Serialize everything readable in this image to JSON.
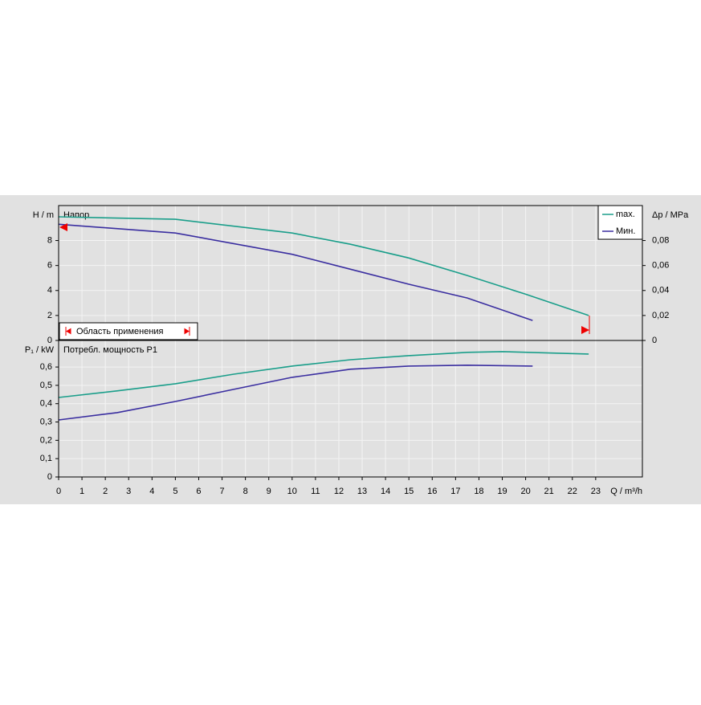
{
  "chart_data": [
    {
      "type": "line",
      "y_label": "H / m",
      "annotation": "Напор",
      "y2_label": "Δp / MPa",
      "range_label": "Область применения",
      "xlim": [
        0,
        25
      ],
      "xticks": [
        0,
        1,
        2,
        3,
        4,
        5,
        6,
        7,
        8,
        9,
        10,
        11,
        12,
        13,
        14,
        15,
        16,
        17,
        18,
        19,
        20,
        21,
        22,
        23
      ],
      "ylim": [
        0,
        10.8
      ],
      "yticks": [
        0,
        2,
        4,
        6,
        8
      ],
      "y2lim": [
        0,
        0.108
      ],
      "y2ticks": [
        0,
        {
          "value": 0.02,
          "label": "0,02"
        },
        {
          "value": 0.04,
          "label": "0,04"
        },
        {
          "value": 0.06,
          "label": "0,06"
        },
        {
          "value": 0.08,
          "label": "0,08"
        }
      ],
      "grid": true,
      "series": [
        {
          "name": "max.",
          "color": "#1a9e8a",
          "x": [
            0,
            5,
            10,
            12.5,
            15,
            17.5,
            20,
            22.7
          ],
          "values": [
            9.9,
            9.7,
            8.6,
            7.7,
            6.6,
            5.2,
            3.7,
            2.0
          ]
        },
        {
          "name": "Мин.",
          "color": "#3a2ea0",
          "x": [
            0,
            5,
            10,
            12.5,
            15,
            17.5,
            20.3
          ],
          "values": [
            9.3,
            8.6,
            6.9,
            5.7,
            4.5,
            3.4,
            1.6
          ]
        }
      ]
    },
    {
      "type": "line",
      "y_label": "P₁ / kW",
      "annotation": "Потребл. мощность P1",
      "x_label": "Q / m³/h",
      "xlim": [
        0,
        25
      ],
      "xticks": [
        0,
        1,
        2,
        3,
        4,
        5,
        6,
        7,
        8,
        9,
        10,
        11,
        12,
        13,
        14,
        15,
        16,
        17,
        18,
        19,
        20,
        21,
        22,
        23
      ],
      "ylim": [
        0,
        0.745
      ],
      "yticks": [
        0,
        {
          "value": 0.1,
          "label": "0,1"
        },
        {
          "value": 0.2,
          "label": "0,2"
        },
        {
          "value": 0.3,
          "label": "0,3"
        },
        {
          "value": 0.4,
          "label": "0,4"
        },
        {
          "value": 0.5,
          "label": "0,5"
        },
        {
          "value": 0.6,
          "label": "0,6"
        }
      ],
      "grid": true,
      "series": [
        {
          "color": "#1a9e8a",
          "x": [
            0,
            2.5,
            5,
            7.5,
            10,
            12.5,
            15,
            17.5,
            19,
            22.7
          ],
          "values": [
            0.434,
            0.47,
            0.509,
            0.561,
            0.605,
            0.64,
            0.662,
            0.68,
            0.684,
            0.671
          ]
        },
        {
          "color": "#3a2ea0",
          "x": [
            0,
            2.5,
            5,
            7.5,
            10,
            12.5,
            15,
            17.5,
            20.3
          ],
          "values": [
            0.311,
            0.351,
            0.412,
            0.478,
            0.544,
            0.588,
            0.605,
            0.61,
            0.605
          ]
        }
      ]
    }
  ]
}
